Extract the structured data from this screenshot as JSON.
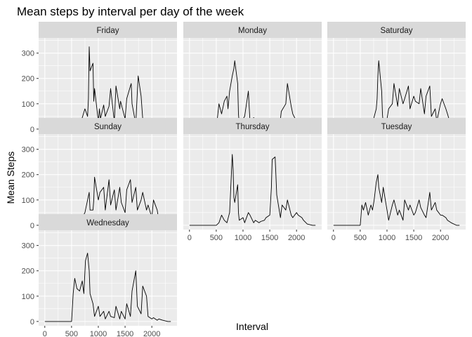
{
  "chart_data": {
    "type": "line",
    "title": "Mean steps by interval per day of the week",
    "xlabel": "Interval",
    "ylabel": "Mean Steps",
    "xlim": [
      -115,
      2470
    ],
    "ylim": [
      -17,
      360
    ],
    "x_ticks": [
      0,
      500,
      1000,
      1500,
      2000
    ],
    "x_tick_labels": [
      "0",
      "500",
      "1000",
      "1500",
      "2000"
    ],
    "y_ticks": [
      0,
      100,
      200,
      300
    ],
    "y_tick_labels": [
      "0",
      "100",
      "200",
      "300"
    ],
    "grid": true,
    "facet_layout": "3 columns x 3 rows",
    "colors": {
      "panel_bg": "#ebebeb",
      "grid": "#ffffff",
      "strip_bg": "#d9d9d9",
      "line": "#000000"
    },
    "series": [
      {
        "name": "Friday",
        "x": [
          0,
          300,
          500,
          550,
          600,
          650,
          700,
          750,
          800,
          815,
          830,
          845,
          900,
          915,
          930,
          1000,
          1020,
          1040,
          1100,
          1130,
          1200,
          1230,
          1300,
          1330,
          1400,
          1415,
          1500,
          1530,
          1600,
          1615,
          1630,
          1700,
          1745,
          1800,
          1830,
          1900,
          1930,
          2000,
          2100,
          2200,
          2300,
          2355
        ],
        "y": [
          0,
          0,
          0,
          10,
          18,
          25,
          45,
          80,
          50,
          120,
          325,
          230,
          260,
          110,
          160,
          30,
          80,
          40,
          95,
          50,
          90,
          160,
          30,
          170,
          80,
          110,
          40,
          120,
          170,
          180,
          100,
          20,
          210,
          130,
          40,
          20,
          15,
          25,
          10,
          5,
          3,
          0
        ]
      },
      {
        "name": "Monday",
        "x": [
          0,
          300,
          500,
          550,
          600,
          630,
          650,
          700,
          720,
          750,
          800,
          830,
          845,
          900,
          915,
          930,
          1000,
          1030,
          1100,
          1130,
          1200,
          1300,
          1400,
          1500,
          1600,
          1700,
          1715,
          1800,
          1830,
          1900,
          1930,
          2000,
          2100,
          2130,
          2200,
          2300,
          2355
        ],
        "y": [
          0,
          0,
          0,
          100,
          60,
          90,
          110,
          130,
          80,
          150,
          210,
          240,
          270,
          180,
          60,
          20,
          40,
          50,
          150,
          30,
          45,
          20,
          10,
          20,
          30,
          40,
          70,
          100,
          180,
          90,
          60,
          30,
          30,
          20,
          5,
          0,
          0
        ]
      },
      {
        "name": "Saturday",
        "x": [
          0,
          300,
          500,
          550,
          600,
          650,
          700,
          750,
          800,
          815,
          830,
          845,
          900,
          915,
          930,
          1000,
          1030,
          1100,
          1130,
          1200,
          1230,
          1300,
          1330,
          1400,
          1430,
          1500,
          1530,
          1600,
          1630,
          1700,
          1730,
          1800,
          1830,
          1900,
          1930,
          2000,
          2030,
          2100,
          2130,
          2200,
          2300,
          2355
        ],
        "y": [
          0,
          0,
          0,
          5,
          10,
          15,
          30,
          40,
          80,
          120,
          210,
          270,
          150,
          60,
          20,
          40,
          80,
          100,
          180,
          90,
          160,
          100,
          120,
          170,
          80,
          130,
          110,
          100,
          160,
          60,
          130,
          170,
          50,
          80,
          30,
          100,
          120,
          80,
          60,
          10,
          0,
          0
        ]
      },
      {
        "name": "Sunday",
        "x": [
          0,
          300,
          500,
          550,
          600,
          650,
          700,
          750,
          800,
          830,
          845,
          900,
          915,
          930,
          1000,
          1030,
          1100,
          1130,
          1200,
          1230,
          1300,
          1330,
          1400,
          1430,
          1500,
          1530,
          1600,
          1630,
          1700,
          1730,
          1800,
          1830,
          1900,
          1930,
          2000,
          2030,
          2100,
          2130,
          2200,
          2300,
          2355
        ],
        "y": [
          0,
          0,
          0,
          5,
          10,
          20,
          30,
          50,
          100,
          130,
          60,
          60,
          100,
          190,
          100,
          130,
          150,
          60,
          180,
          80,
          140,
          60,
          150,
          90,
          50,
          140,
          180,
          90,
          150,
          60,
          100,
          130,
          60,
          80,
          30,
          100,
          60,
          20,
          30,
          10,
          0
        ]
      },
      {
        "name": "Thursday",
        "x": [
          0,
          300,
          500,
          550,
          600,
          650,
          700,
          750,
          800,
          815,
          830,
          845,
          900,
          915,
          930,
          1000,
          1030,
          1100,
          1130,
          1200,
          1230,
          1300,
          1330,
          1400,
          1430,
          1500,
          1530,
          1545,
          1600,
          1615,
          1630,
          1700,
          1730,
          1800,
          1830,
          1900,
          1930,
          2000,
          2030,
          2100,
          2130,
          2200,
          2300,
          2355
        ],
        "y": [
          0,
          0,
          0,
          10,
          40,
          20,
          10,
          50,
          280,
          220,
          110,
          90,
          160,
          50,
          20,
          30,
          10,
          50,
          40,
          10,
          20,
          10,
          15,
          20,
          30,
          40,
          150,
          260,
          270,
          200,
          120,
          30,
          80,
          60,
          100,
          40,
          30,
          50,
          40,
          30,
          20,
          5,
          0,
          0
        ]
      },
      {
        "name": "Tuesday",
        "x": [
          0,
          300,
          500,
          530,
          560,
          600,
          650,
          700,
          730,
          760,
          800,
          830,
          845,
          900,
          930,
          1000,
          1030,
          1100,
          1130,
          1200,
          1230,
          1300,
          1330,
          1400,
          1430,
          1500,
          1530,
          1600,
          1630,
          1700,
          1730,
          1800,
          1830,
          1900,
          1930,
          2000,
          2030,
          2100,
          2130,
          2200,
          2300,
          2355
        ],
        "y": [
          0,
          0,
          0,
          80,
          60,
          90,
          40,
          80,
          60,
          100,
          170,
          200,
          150,
          90,
          150,
          60,
          20,
          80,
          100,
          40,
          60,
          20,
          100,
          60,
          80,
          40,
          50,
          100,
          70,
          40,
          30,
          130,
          60,
          90,
          60,
          40,
          40,
          30,
          20,
          10,
          0,
          0
        ]
      },
      {
        "name": "Wednesday",
        "x": [
          0,
          300,
          500,
          530,
          560,
          600,
          650,
          700,
          730,
          760,
          800,
          830,
          845,
          900,
          930,
          1000,
          1030,
          1100,
          1130,
          1200,
          1230,
          1300,
          1330,
          1400,
          1430,
          1500,
          1530,
          1600,
          1630,
          1700,
          1730,
          1800,
          1830,
          1900,
          1930,
          2000,
          2030,
          2100,
          2130,
          2200,
          2300,
          2355
        ],
        "y": [
          0,
          0,
          0,
          110,
          170,
          130,
          120,
          160,
          110,
          240,
          270,
          200,
          110,
          70,
          20,
          60,
          20,
          40,
          10,
          40,
          20,
          15,
          60,
          10,
          40,
          10,
          70,
          20,
          120,
          200,
          60,
          30,
          140,
          100,
          20,
          10,
          15,
          5,
          10,
          5,
          0,
          0
        ]
      }
    ]
  }
}
